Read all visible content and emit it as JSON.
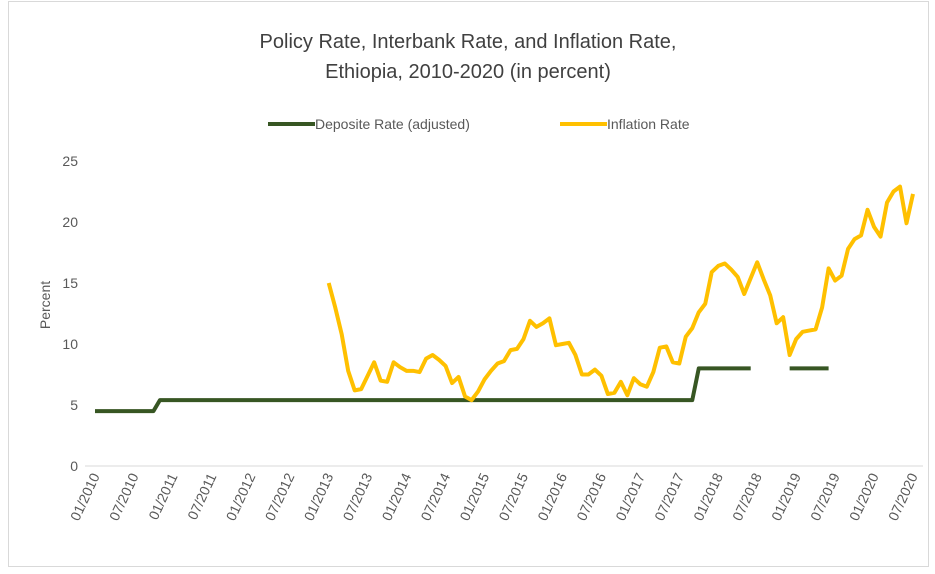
{
  "chart_data": {
    "type": "line",
    "title": [
      "Policy Rate, Interbank Rate, and Inflation Rate,",
      "Ethiopia, 2010-2020 (in percent)"
    ],
    "y_label": "Percent",
    "categories": [
      "01/2010",
      null,
      null,
      null,
      null,
      null,
      "07/2010",
      null,
      null,
      null,
      null,
      null,
      "01/2011",
      null,
      null,
      null,
      null,
      null,
      "07/2011",
      null,
      null,
      null,
      null,
      null,
      "01/2012",
      null,
      null,
      null,
      null,
      null,
      "07/2012",
      null,
      null,
      null,
      null,
      null,
      "01/2013",
      null,
      null,
      null,
      null,
      null,
      "07/2013",
      null,
      null,
      null,
      null,
      null,
      "01/2014",
      null,
      null,
      null,
      null,
      null,
      "07/2014",
      null,
      null,
      null,
      null,
      null,
      "01/2015",
      null,
      null,
      null,
      null,
      null,
      "07/2015",
      null,
      null,
      null,
      null,
      null,
      "01/2016",
      null,
      null,
      null,
      null,
      null,
      "07/2016",
      null,
      null,
      null,
      null,
      null,
      "01/2017",
      null,
      null,
      null,
      null,
      null,
      "07/2017",
      null,
      null,
      null,
      null,
      null,
      "01/2018",
      null,
      null,
      null,
      null,
      null,
      "07/2018",
      null,
      null,
      null,
      null,
      null,
      "01/2019",
      null,
      null,
      null,
      null,
      null,
      "07/2019",
      null,
      null,
      null,
      null,
      null,
      "01/2020",
      null,
      null,
      null,
      null,
      null,
      "07/2020"
    ],
    "series": [
      {
        "name": "Deposite Rate (adjusted)",
        "color": "#375623",
        "values": [
          4.5,
          4.5,
          4.5,
          4.5,
          4.5,
          4.5,
          4.5,
          4.5,
          4.5,
          4.5,
          5.4,
          5.4,
          5.4,
          5.4,
          5.4,
          5.4,
          5.4,
          5.4,
          5.4,
          5.4,
          5.4,
          5.4,
          5.4,
          5.4,
          5.4,
          5.4,
          5.4,
          5.4,
          5.4,
          5.4,
          5.4,
          5.4,
          5.4,
          5.4,
          5.4,
          5.4,
          5.4,
          5.4,
          5.4,
          5.4,
          5.4,
          5.4,
          5.4,
          5.4,
          5.4,
          5.4,
          5.4,
          5.4,
          5.4,
          5.4,
          5.4,
          5.4,
          5.4,
          5.4,
          5.4,
          5.4,
          5.4,
          5.4,
          5.4,
          5.4,
          5.4,
          5.4,
          5.4,
          5.4,
          5.4,
          5.4,
          5.4,
          5.4,
          5.4,
          5.4,
          5.4,
          5.4,
          5.4,
          5.4,
          5.4,
          5.4,
          5.4,
          5.4,
          5.4,
          5.4,
          5.4,
          5.4,
          5.4,
          5.4,
          5.4,
          5.4,
          5.4,
          5.4,
          5.4,
          5.4,
          5.4,
          5.4,
          5.4,
          8,
          8,
          8,
          8,
          8,
          8,
          8,
          8,
          8,
          null,
          null,
          null,
          null,
          null,
          8,
          8,
          8,
          8,
          8,
          8,
          8,
          null,
          null,
          null,
          null,
          null,
          null,
          null,
          null,
          null,
          null,
          null,
          null,
          null
        ]
      },
      {
        "name": "Inflation Rate",
        "color": "#ffc000",
        "values": [
          null,
          null,
          null,
          null,
          null,
          null,
          null,
          null,
          null,
          null,
          null,
          null,
          null,
          null,
          null,
          null,
          null,
          null,
          null,
          null,
          null,
          null,
          null,
          null,
          null,
          null,
          null,
          null,
          null,
          null,
          null,
          null,
          null,
          null,
          null,
          null,
          15,
          13,
          10.8,
          7.8,
          6.2,
          6.3,
          7.4,
          8.5,
          7.0,
          6.9,
          8.5,
          8.1,
          7.8,
          7.8,
          7.7,
          8.8,
          9.1,
          8.7,
          8.2,
          6.8,
          7.3,
          5.7,
          5.4,
          6.1,
          7.1,
          7.8,
          8.4,
          8.6,
          9.5,
          9.6,
          10.4,
          11.9,
          11.4,
          11.7,
          12.1,
          9.9,
          10.0,
          10.1,
          9.1,
          7.5,
          7.5,
          7.9,
          7.4,
          5.9,
          6.0,
          6.9,
          5.8,
          7.2,
          6.7,
          6.5,
          7.7,
          9.7,
          9.8,
          8.5,
          8.4,
          10.6,
          11.3,
          12.6,
          13.3,
          15.9,
          16.4,
          16.6,
          16.1,
          15.5,
          14.1,
          15.4,
          16.7,
          15.3,
          14.0,
          11.7,
          12.2,
          9.1,
          10.4,
          11.0,
          11.1,
          11.2,
          13.0,
          16.2,
          15.2,
          15.6,
          17.8,
          18.6,
          18.9,
          21.0,
          19.6,
          18.8,
          21.6,
          22.5,
          22.9,
          19.9,
          22.3
        ]
      }
    ],
    "ylim": [
      0,
      25
    ],
    "yticks": [
      0,
      5,
      10,
      15,
      20,
      25
    ],
    "grid": false
  }
}
